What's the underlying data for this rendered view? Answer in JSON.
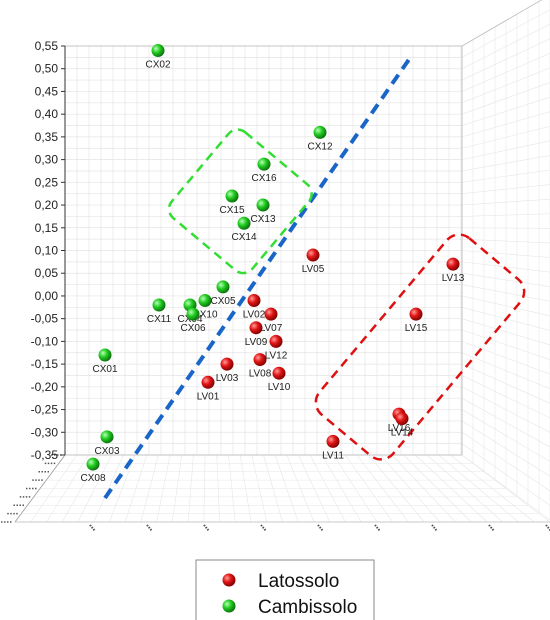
{
  "chart_data": {
    "type": "scatter",
    "title": "",
    "xlabel": "",
    "ylabel": "",
    "ylim": [
      -0.35,
      0.55
    ],
    "y_ticks": [
      "0,55",
      "0,50",
      "0,45",
      "0,40",
      "0,35",
      "0,30",
      "0,25",
      "0,20",
      "0,15",
      "0,10",
      "0,05",
      "0,00",
      "-0,05",
      "-0,10",
      "-0,15",
      "-0,20",
      "-0,25",
      "-0,30",
      "-0,35"
    ],
    "grid": true,
    "legend_position": "bottom-center",
    "colors": {
      "Latossolo": "#dd1111",
      "Cambissolo": "#22cc22"
    },
    "series": [
      {
        "name": "Latossolo",
        "points": [
          {
            "label": "LV01",
            "y": -0.19
          },
          {
            "label": "LV02",
            "y": -0.01
          },
          {
            "label": "LV03",
            "y": -0.15
          },
          {
            "label": "LV05",
            "y": 0.09
          },
          {
            "label": "LV07",
            "y": -0.04
          },
          {
            "label": "LV08",
            "y": -0.14
          },
          {
            "label": "LV09",
            "y": -0.07
          },
          {
            "label": "LV12",
            "y": -0.1
          },
          {
            "label": "LV10",
            "y": -0.17
          },
          {
            "label": "LV11",
            "y": -0.32
          },
          {
            "label": "LV13",
            "y": 0.07
          },
          {
            "label": "LV15",
            "y": -0.04
          },
          {
            "label": "LV16",
            "y": -0.26
          },
          {
            "label": "LV14",
            "y": -0.27
          }
        ]
      },
      {
        "name": "Cambissolo",
        "points": [
          {
            "label": "CX02",
            "y": 0.54
          },
          {
            "label": "CX12",
            "y": 0.36
          },
          {
            "label": "CX16",
            "y": 0.29
          },
          {
            "label": "CX15",
            "y": 0.22
          },
          {
            "label": "CX13",
            "y": 0.2
          },
          {
            "label": "CX14",
            "y": 0.16
          },
          {
            "label": "CX05",
            "y": 0.02
          },
          {
            "label": "CX11",
            "y": -0.02
          },
          {
            "label": "CX10",
            "y": -0.01
          },
          {
            "label": "CX04",
            "y": -0.02
          },
          {
            "label": "CX06",
            "y": -0.04
          },
          {
            "label": "CX01",
            "y": -0.13
          },
          {
            "label": "CX03",
            "y": -0.31
          },
          {
            "label": "CX08",
            "y": -0.37
          }
        ]
      }
    ],
    "legend": [
      {
        "label": "Latossolo",
        "color": "#dd1111"
      },
      {
        "label": "Cambissolo",
        "color": "#22cc22"
      }
    ]
  }
}
